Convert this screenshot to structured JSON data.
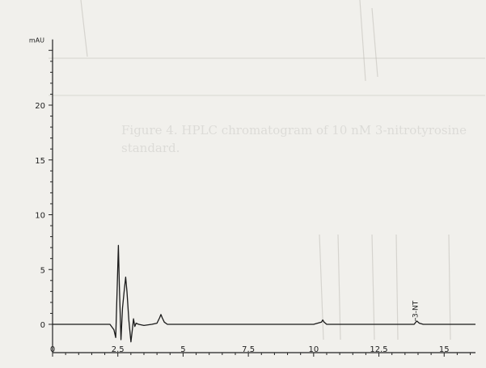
{
  "chart_data": {
    "type": "line",
    "title": "",
    "xlabel": "",
    "ylabel": "mAU",
    "xlim": [
      0,
      16.2
    ],
    "ylim": [
      -1.5,
      26
    ],
    "x_ticks": [
      0,
      2.5,
      5,
      7.5,
      10,
      12.5,
      15
    ],
    "x_tick_labels": [
      "0",
      "2.5",
      "5",
      "7.5",
      "10",
      "12.5",
      "15"
    ],
    "y_ticks": [
      0,
      5,
      10,
      15,
      20
    ],
    "y_tick_labels": [
      "0",
      "5",
      "10",
      "15",
      "20"
    ],
    "grid": false,
    "series": [
      {
        "x": [
          0,
          2.2,
          2.35,
          2.42,
          2.48,
          2.52,
          2.56,
          2.62,
          2.68,
          2.75,
          2.8,
          2.85,
          2.92,
          3.0,
          3.05,
          3.1,
          3.15,
          3.2,
          3.3,
          3.5,
          3.8,
          4.0,
          4.1,
          4.15,
          4.2,
          4.28,
          4.4,
          4.6,
          5.0,
          7.5,
          10.0,
          10.3,
          10.35,
          10.4,
          10.5,
          12.5,
          13.85,
          13.95,
          14.05,
          14.2,
          15.0,
          16.2
        ],
        "y": [
          0,
          0,
          -0.5,
          -1.2,
          3.8,
          7.2,
          3.5,
          -1.4,
          1.5,
          3.2,
          4.3,
          3.0,
          0.4,
          -1.6,
          -0.6,
          0.5,
          -0.2,
          0.1,
          0,
          -0.1,
          0,
          0.1,
          0.6,
          0.9,
          0.6,
          0.2,
          0,
          0,
          0,
          0,
          0,
          0.2,
          0.4,
          0.2,
          0,
          0,
          0,
          0.3,
          0.1,
          0,
          0,
          0
        ]
      }
    ],
    "annotations": [
      {
        "text": "3-NT",
        "x": 13.9,
        "y": 0.3
      }
    ]
  },
  "ghost_caption": {
    "line1": "Figure 4. HPLC chromatogram of 10 nM 3-nitrotyrosine",
    "line2": "standard."
  }
}
